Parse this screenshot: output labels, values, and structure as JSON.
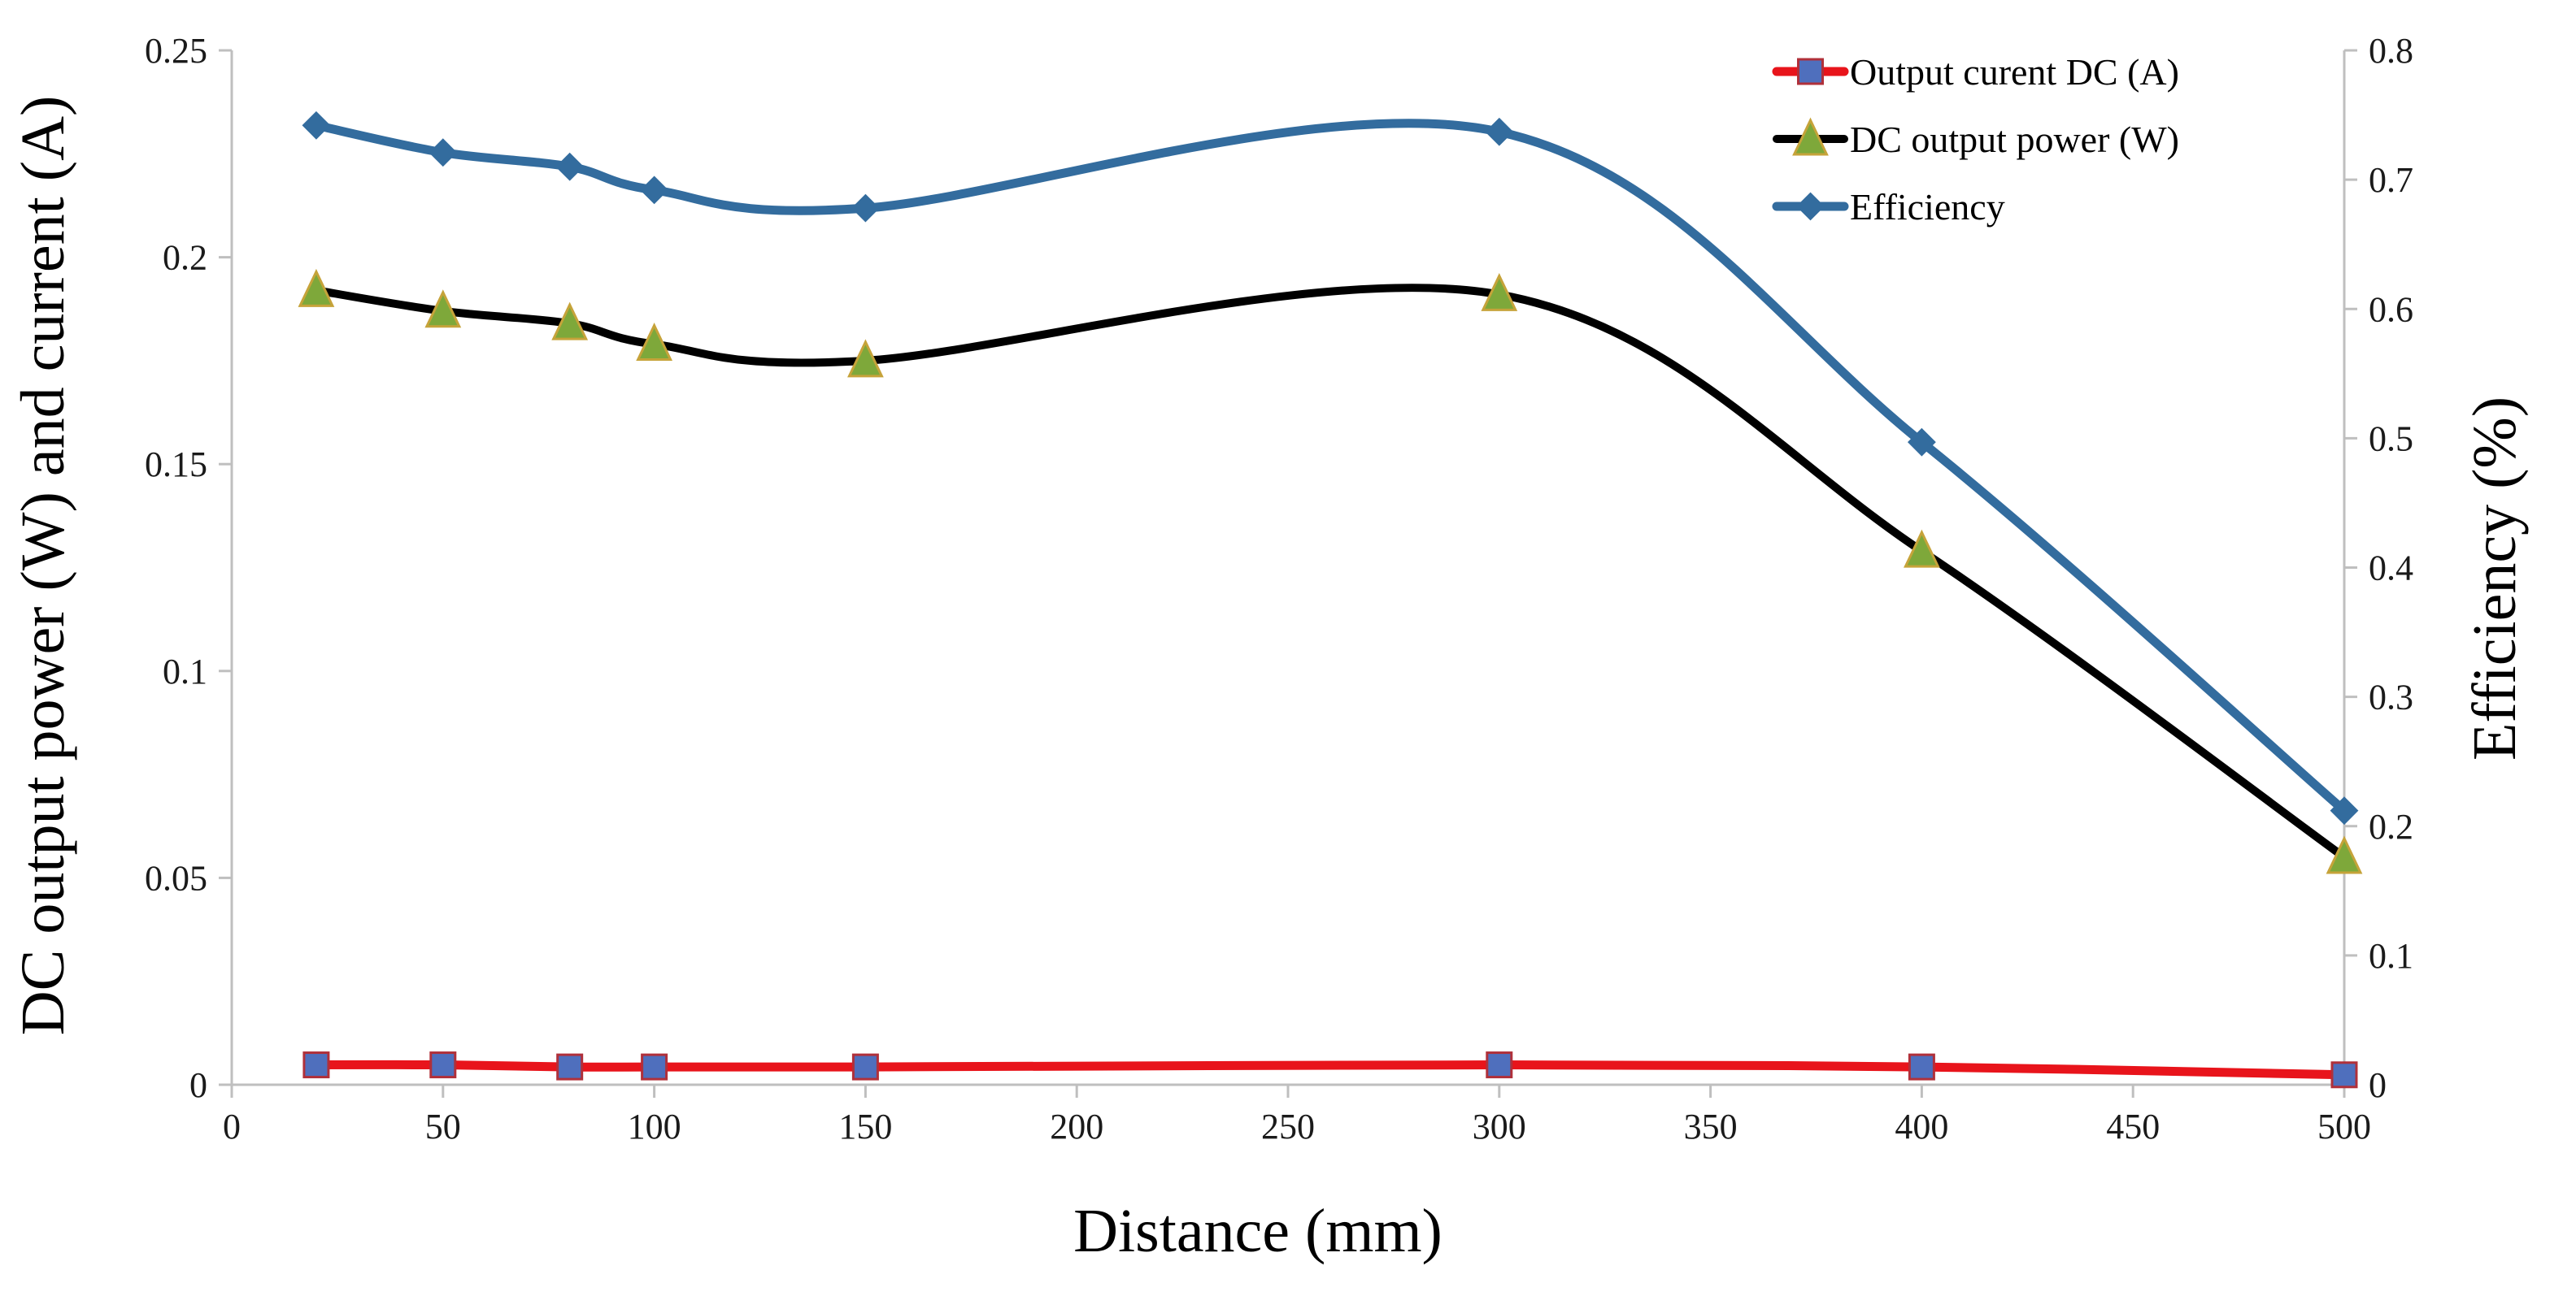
{
  "chart_data": {
    "type": "line",
    "xlabel": "Distance (mm)",
    "ylabel": "DC output power (W) and current (A)",
    "y2label": "Efficiency (%)",
    "xlim": [
      0,
      500
    ],
    "ylim": [
      0,
      0.25
    ],
    "y2lim": [
      0,
      0.8
    ],
    "xticks": [
      0,
      50,
      100,
      150,
      200,
      250,
      300,
      350,
      400,
      450,
      500
    ],
    "yticks": [
      0,
      0.05,
      0.1,
      0.15,
      0.2,
      0.25
    ],
    "y2ticks": [
      0,
      0.1,
      0.2,
      0.3,
      0.4,
      0.5,
      0.6,
      0.7,
      0.8
    ],
    "grid": false,
    "legend": "top-right",
    "x": [
      20,
      50,
      80,
      100,
      150,
      300,
      400,
      500
    ],
    "series": [
      {
        "name": "Output curent DC (A)",
        "axis": "left",
        "color": "#e8141b",
        "marker": "square",
        "marker_color": "#4f6fbd",
        "values": [
          0.0048,
          0.0048,
          0.0043,
          0.0043,
          0.0043,
          0.0048,
          0.0043,
          0.0024
        ]
      },
      {
        "name": "DC output power (W)",
        "axis": "left",
        "color": "#000000",
        "marker": "triangle",
        "marker_color": "#7ea83a",
        "values": [
          0.192,
          0.187,
          0.184,
          0.179,
          0.175,
          0.191,
          0.129,
          0.055
        ]
      },
      {
        "name": "Efficiency",
        "axis": "right",
        "color": "#336c9e",
        "marker": "diamond",
        "marker_color": "#336c9e",
        "values": [
          0.742,
          0.721,
          0.71,
          0.692,
          0.678,
          0.737,
          0.497,
          0.212
        ]
      }
    ]
  }
}
